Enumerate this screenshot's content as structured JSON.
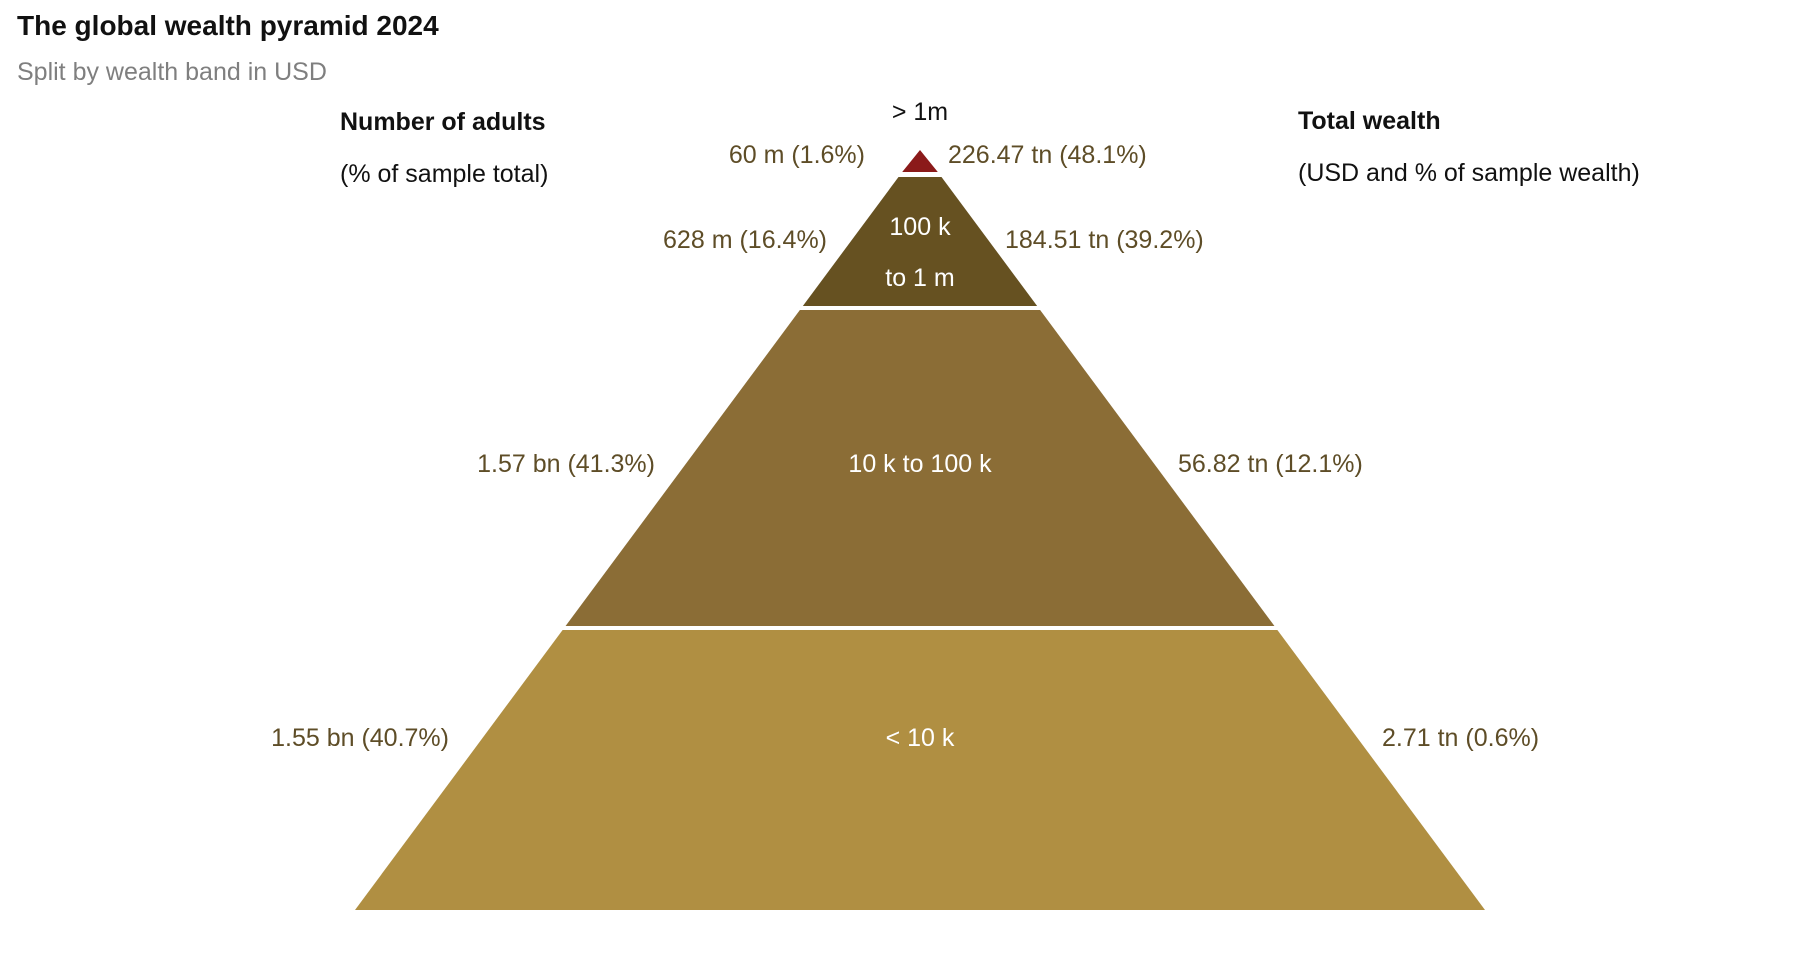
{
  "header": {
    "title": "The global wealth pyramid 2024",
    "subtitle": "Split by wealth band in USD"
  },
  "columns": {
    "left_title": "Number of adults",
    "left_subtitle": "(% of sample total)",
    "right_title": "Total wealth",
    "right_subtitle": "(USD and % of sample wealth)"
  },
  "chart_data": {
    "type": "pyramid",
    "title": "The global wealth pyramid 2024",
    "subtitle": "Split by wealth band in USD",
    "bands": [
      {
        "name": "> 1m",
        "label_lines": [
          "> 1m"
        ],
        "adults_label": "60 m (1.6%)",
        "wealth_label": "226.47 tn (48.1%)",
        "adults_millions": 60,
        "adults_pct": 1.6,
        "wealth_tn": 226.47,
        "wealth_pct": 48.1,
        "color": "#8b1a1a"
      },
      {
        "name": "100k to 1 m",
        "label_lines": [
          "100 k",
          "to 1 m"
        ],
        "adults_label": "628 m (16.4%)",
        "wealth_label": "184.51 tn (39.2%)",
        "adults_millions": 628,
        "adults_pct": 16.4,
        "wealth_tn": 184.51,
        "wealth_pct": 39.2,
        "color": "#665121"
      },
      {
        "name": "10k to 100k",
        "label_lines": [
          "10 k to 100 k"
        ],
        "adults_label": "1.57 bn (41.3%)",
        "wealth_label": "56.82 tn (12.1%)",
        "adults_millions": 1570,
        "adults_pct": 41.3,
        "wealth_tn": 56.82,
        "wealth_pct": 12.1,
        "color": "#8b6d36"
      },
      {
        "name": "< 10k",
        "label_lines": [
          "< 10 k"
        ],
        "adults_label": "1.55 bn (40.7%)",
        "wealth_label": "2.71 tn (0.6%)",
        "adults_millions": 1550,
        "adults_pct": 40.7,
        "wealth_tn": 2.71,
        "wealth_pct": 0.6,
        "color": "#b08f42"
      }
    ]
  }
}
